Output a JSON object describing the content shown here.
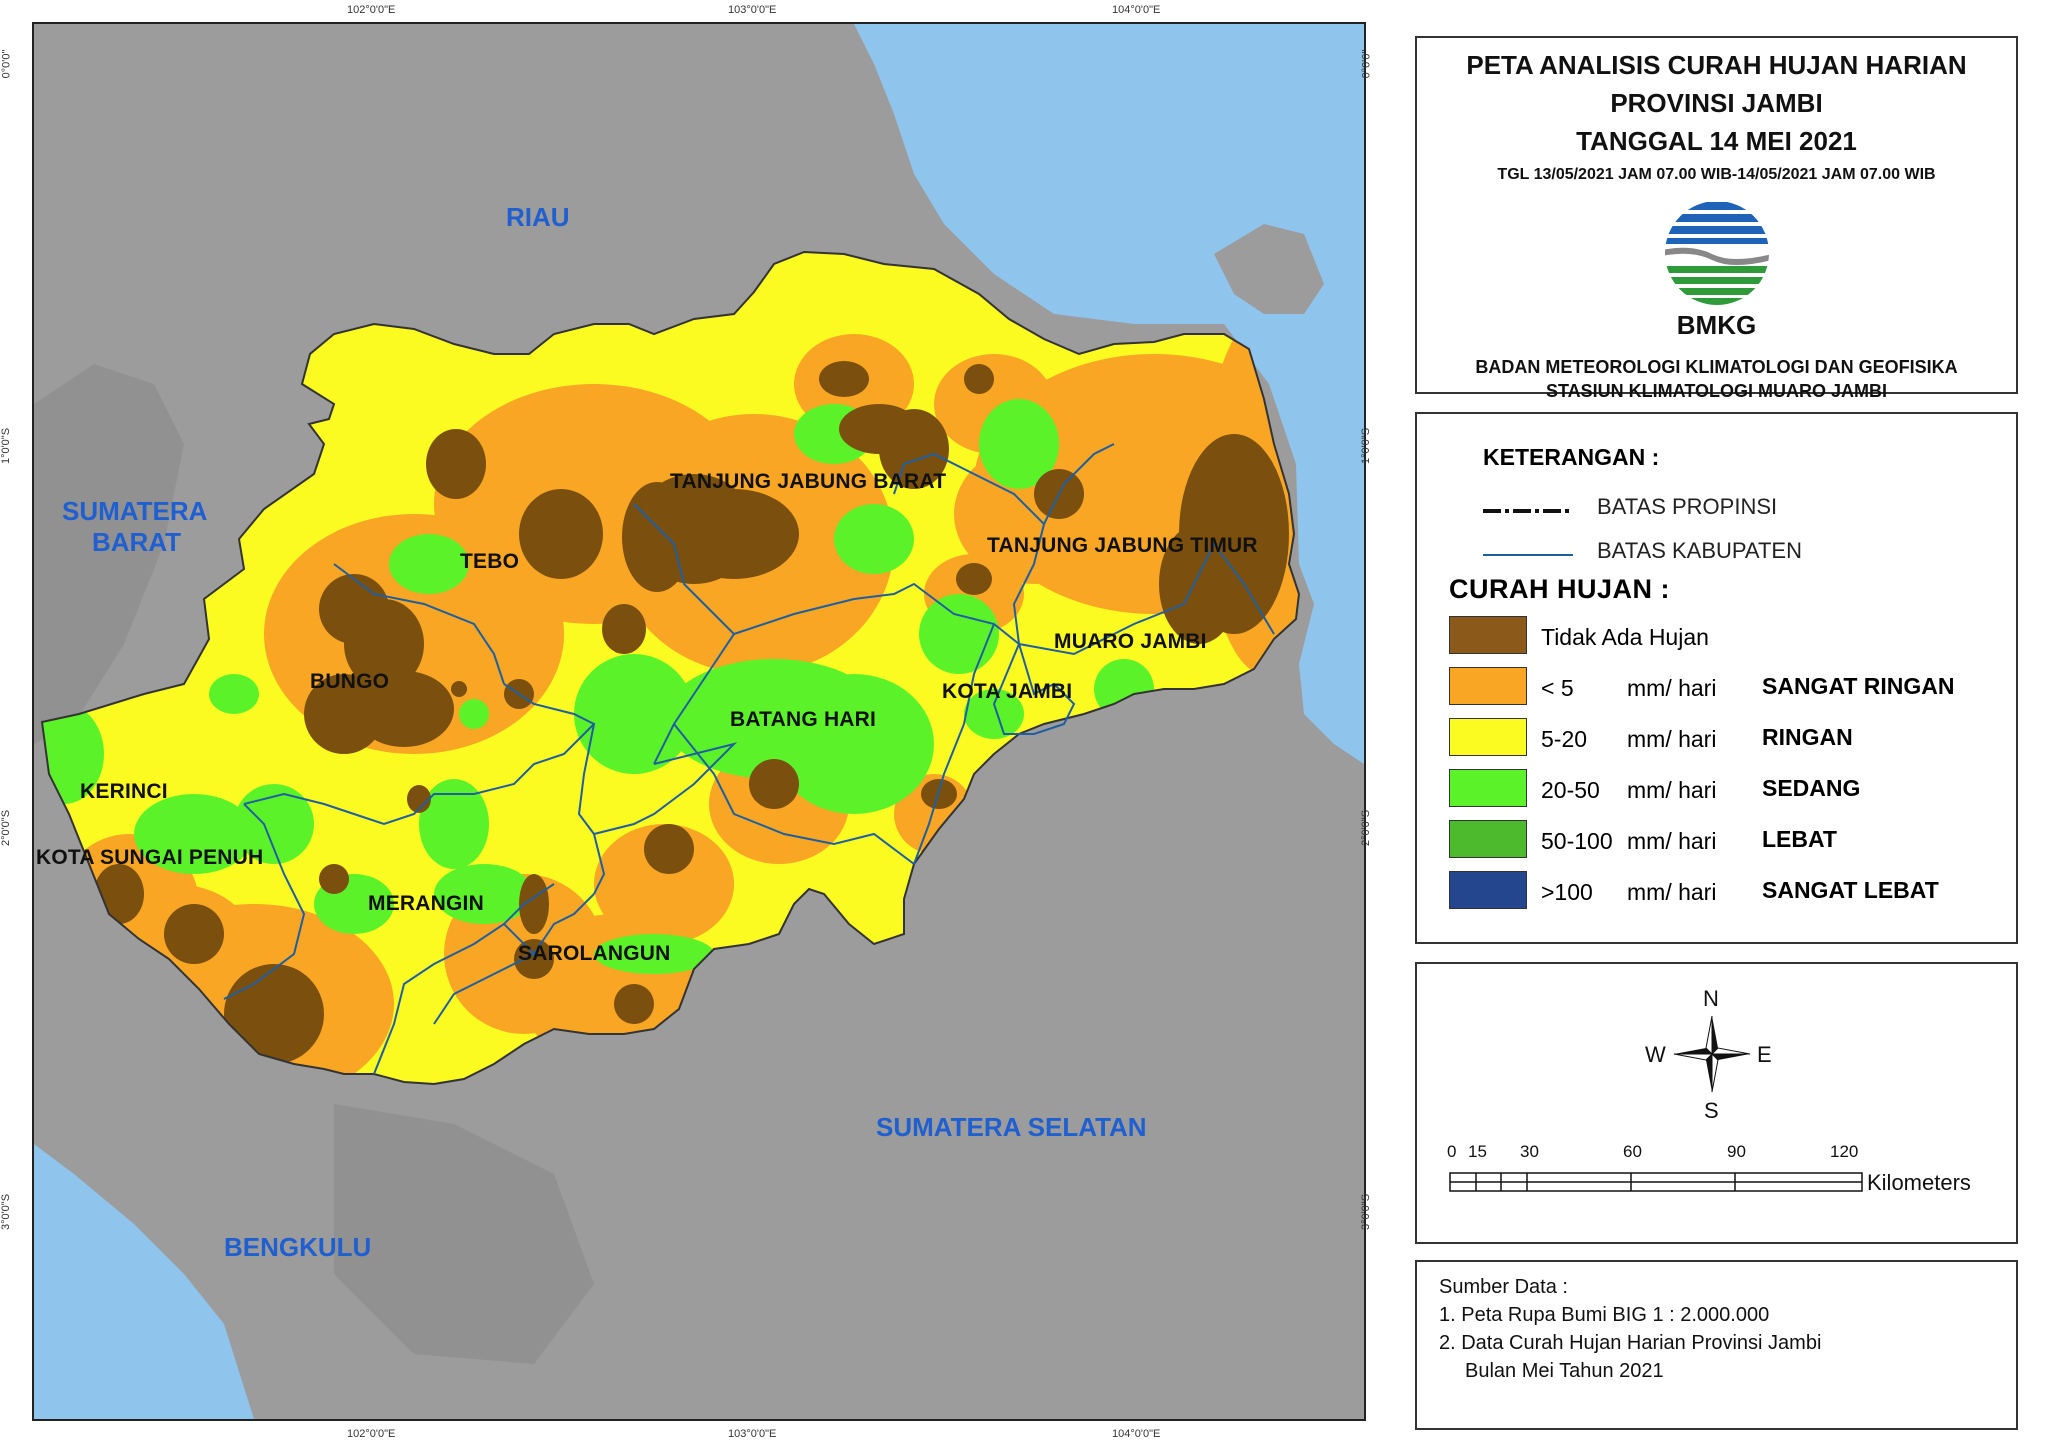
{
  "title": {
    "line1": "PETA ANALISIS CURAH HUJAN HARIAN",
    "line2": "PROVINSI JAMBI",
    "line3": "TANGGAL 14 MEI 2021",
    "period": "TGL 13/05/2021 JAM 07.00 WIB-14/05/2021 JAM 07.00 WIB",
    "logo_text": "BMKG",
    "agency_line1": "BADAN METEOROLOGI KLIMATOLOGI DAN GEOFISIKA",
    "agency_line2": "STASIUN KLIMATOLOGI MUARO JAMBI"
  },
  "map": {
    "top_ticks": [
      "102°0'0\"E",
      "103°0'0\"E",
      "104°0'0\"E"
    ],
    "bottom_ticks": [
      "102°0'0\"E",
      "103°0'0\"E",
      "104°0'0\"E"
    ],
    "left_ticks": [
      "0°0'0\"",
      "1°0'0\"S",
      "2°0'0\"S",
      "3°0'0\"S"
    ],
    "right_ticks": [
      "0°0'0\"",
      "1°0'0\"S",
      "2°0'0\"S",
      "3°0'0\"S"
    ],
    "regions": {
      "riau": "RIAU",
      "sumbar_1": "SUMATERA",
      "sumbar_2": "BARAT",
      "sumsel": "SUMATERA SELATAN",
      "bengkulu": "BENGKULU"
    },
    "districts": {
      "tjb": "TANJUNG JABUNG BARAT",
      "tjt": "TANJUNG JABUNG TIMUR",
      "tebo": "TEBO",
      "bungo": "BUNGO",
      "muaro_jambi": "MUARO JAMBI",
      "kota_jambi": "KOTA JAMBI",
      "batang_hari": "BATANG HARI",
      "kerinci": "KERINCI",
      "sungai_penuh": "KOTA SUNGAI PENUH",
      "merangin": "MERANGIN",
      "sarolangun": "SAROLANGUN"
    },
    "colors": {
      "sea": "#8fc4ec",
      "land": "#9c9c9c",
      "tidak_ada": "#7b4f0e",
      "sangat_ringan": "#f8a623",
      "ringan": "#fbfb22",
      "sedang": "#5cf22a",
      "lebat": "#4cba2c",
      "sangat_lebat": "#23468f",
      "region_label": "#1f5fd0",
      "kabupaten_line": "#1f5fa0"
    }
  },
  "legend": {
    "heading": "KETERANGAN :",
    "batas_propinsi": "BATAS PROPINSI",
    "batas_kabupaten": "BATAS KABUPATEN",
    "curah_heading": "CURAH HUJAN :",
    "classes": [
      {
        "range": "Tidak Ada Hujan",
        "unit": "",
        "category": "",
        "color": "#8b5a1a"
      },
      {
        "range": "< 5",
        "unit": "mm/ hari",
        "category": "SANGAT RINGAN",
        "color": "#f8a623"
      },
      {
        "range": "5-20",
        "unit": "mm/ hari",
        "category": "RINGAN",
        "color": "#fbfb22"
      },
      {
        "range": "20-50",
        "unit": "mm/ hari",
        "category": "SEDANG",
        "color": "#5cf22a"
      },
      {
        "range": "50-100",
        "unit": "mm/ hari",
        "category": "LEBAT",
        "color": "#4cba2c"
      },
      {
        "range": ">100",
        "unit": "mm/ hari",
        "category": "SANGAT LEBAT",
        "color": "#23468f"
      }
    ]
  },
  "compass": {
    "n": "N",
    "s": "S",
    "e": "E",
    "w": "W"
  },
  "scalebar": {
    "labels": [
      "0",
      "15",
      "30",
      "60",
      "90",
      "120"
    ],
    "unit": "Kilometers"
  },
  "source": {
    "heading": "Sumber Data :",
    "item1": "1. Peta Rupa Bumi BIG 1 : 2.000.000",
    "item2": "2. Data Curah Hujan Harian Provinsi Jambi",
    "item3": "Bulan Mei Tahun 2021"
  }
}
